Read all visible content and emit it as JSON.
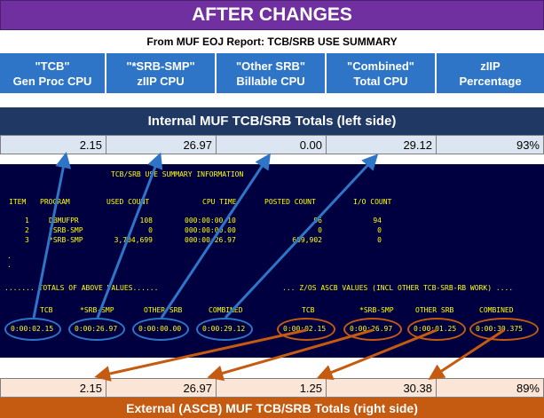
{
  "banner_title": "AFTER CHANGES",
  "subtitle": "From MUF EOJ Report:  TCB/SRB USE SUMMARY",
  "columns": [
    {
      "line1": "\"TCB\"",
      "line2": "Gen Proc CPU"
    },
    {
      "line1": "\"*SRB-SMP\"",
      "line2": "zIIP CPU"
    },
    {
      "line1": "\"Other SRB\"",
      "line2": "Billable CPU"
    },
    {
      "line1": "\"Combined\"",
      "line2": "Total CPU"
    },
    {
      "line1": "zIIP",
      "line2": "Percentage"
    }
  ],
  "internal": {
    "title": "Internal MUF TCB/SRB Totals (left side)",
    "values": [
      "2.15",
      "26.97",
      "0.00",
      "29.12",
      "93%"
    ]
  },
  "external": {
    "title": "External (ASCB) MUF TCB/SRB Totals (right side)",
    "values": [
      "2.15",
      "26.97",
      "1.25",
      "30.38",
      "89%"
    ]
  },
  "screen": {
    "title": "TCB/SRB USE SUMMARY INFORMATION",
    "headers": [
      "ITEM",
      "PROGRAM",
      "USED COUNT",
      "CPU TIME",
      "POSTED COUNT",
      "I/O COUNT"
    ],
    "rows": [
      [
        "1",
        "DBMUFPR",
        "108",
        "000:00:00.10",
        "96",
        "94"
      ],
      [
        "2",
        "*SRB-SMP",
        "0",
        "000:00:00.00",
        "0",
        "0"
      ],
      [
        "3",
        "*SRB-SMP",
        "3,704,699",
        "000:00:26.97",
        "609,902",
        "0"
      ]
    ],
    "dots": [
      ".",
      "."
    ],
    "left_label": "....... TOTALS OF ABOVE VALUES......",
    "right_label": "... Z/OS ASCB VALUES (INCL OTHER TCB-SRB-RB WORK) ....",
    "left_totals": [
      {
        "label": "TCB",
        "value": "0:00:02.15"
      },
      {
        "label": "*SRB-SMP",
        "value": "0:00:26.97"
      },
      {
        "label": "OTHER SRB",
        "value": "0:00:00.00"
      },
      {
        "label": "COMBINED",
        "value": "0:00:29.12"
      }
    ],
    "right_totals": [
      {
        "label": "TCB",
        "value": "0:00:02.15"
      },
      {
        "label": "*SRB-SMP",
        "value": "0:00:26.97"
      },
      {
        "label": "OTHER SRB",
        "value": "0:00:01.25"
      },
      {
        "label": "COMBINED",
        "value": "0:00:30.375"
      }
    ]
  },
  "colors": {
    "banner": "#7030a0",
    "header_blue": "#2e75c8",
    "navy": "#1f3864",
    "orange": "#c55a11",
    "screen_bg": "#000040",
    "screen_text": "#ffff00",
    "arrow_blue": "#2e75c8",
    "arrow_orange": "#c55a11"
  }
}
